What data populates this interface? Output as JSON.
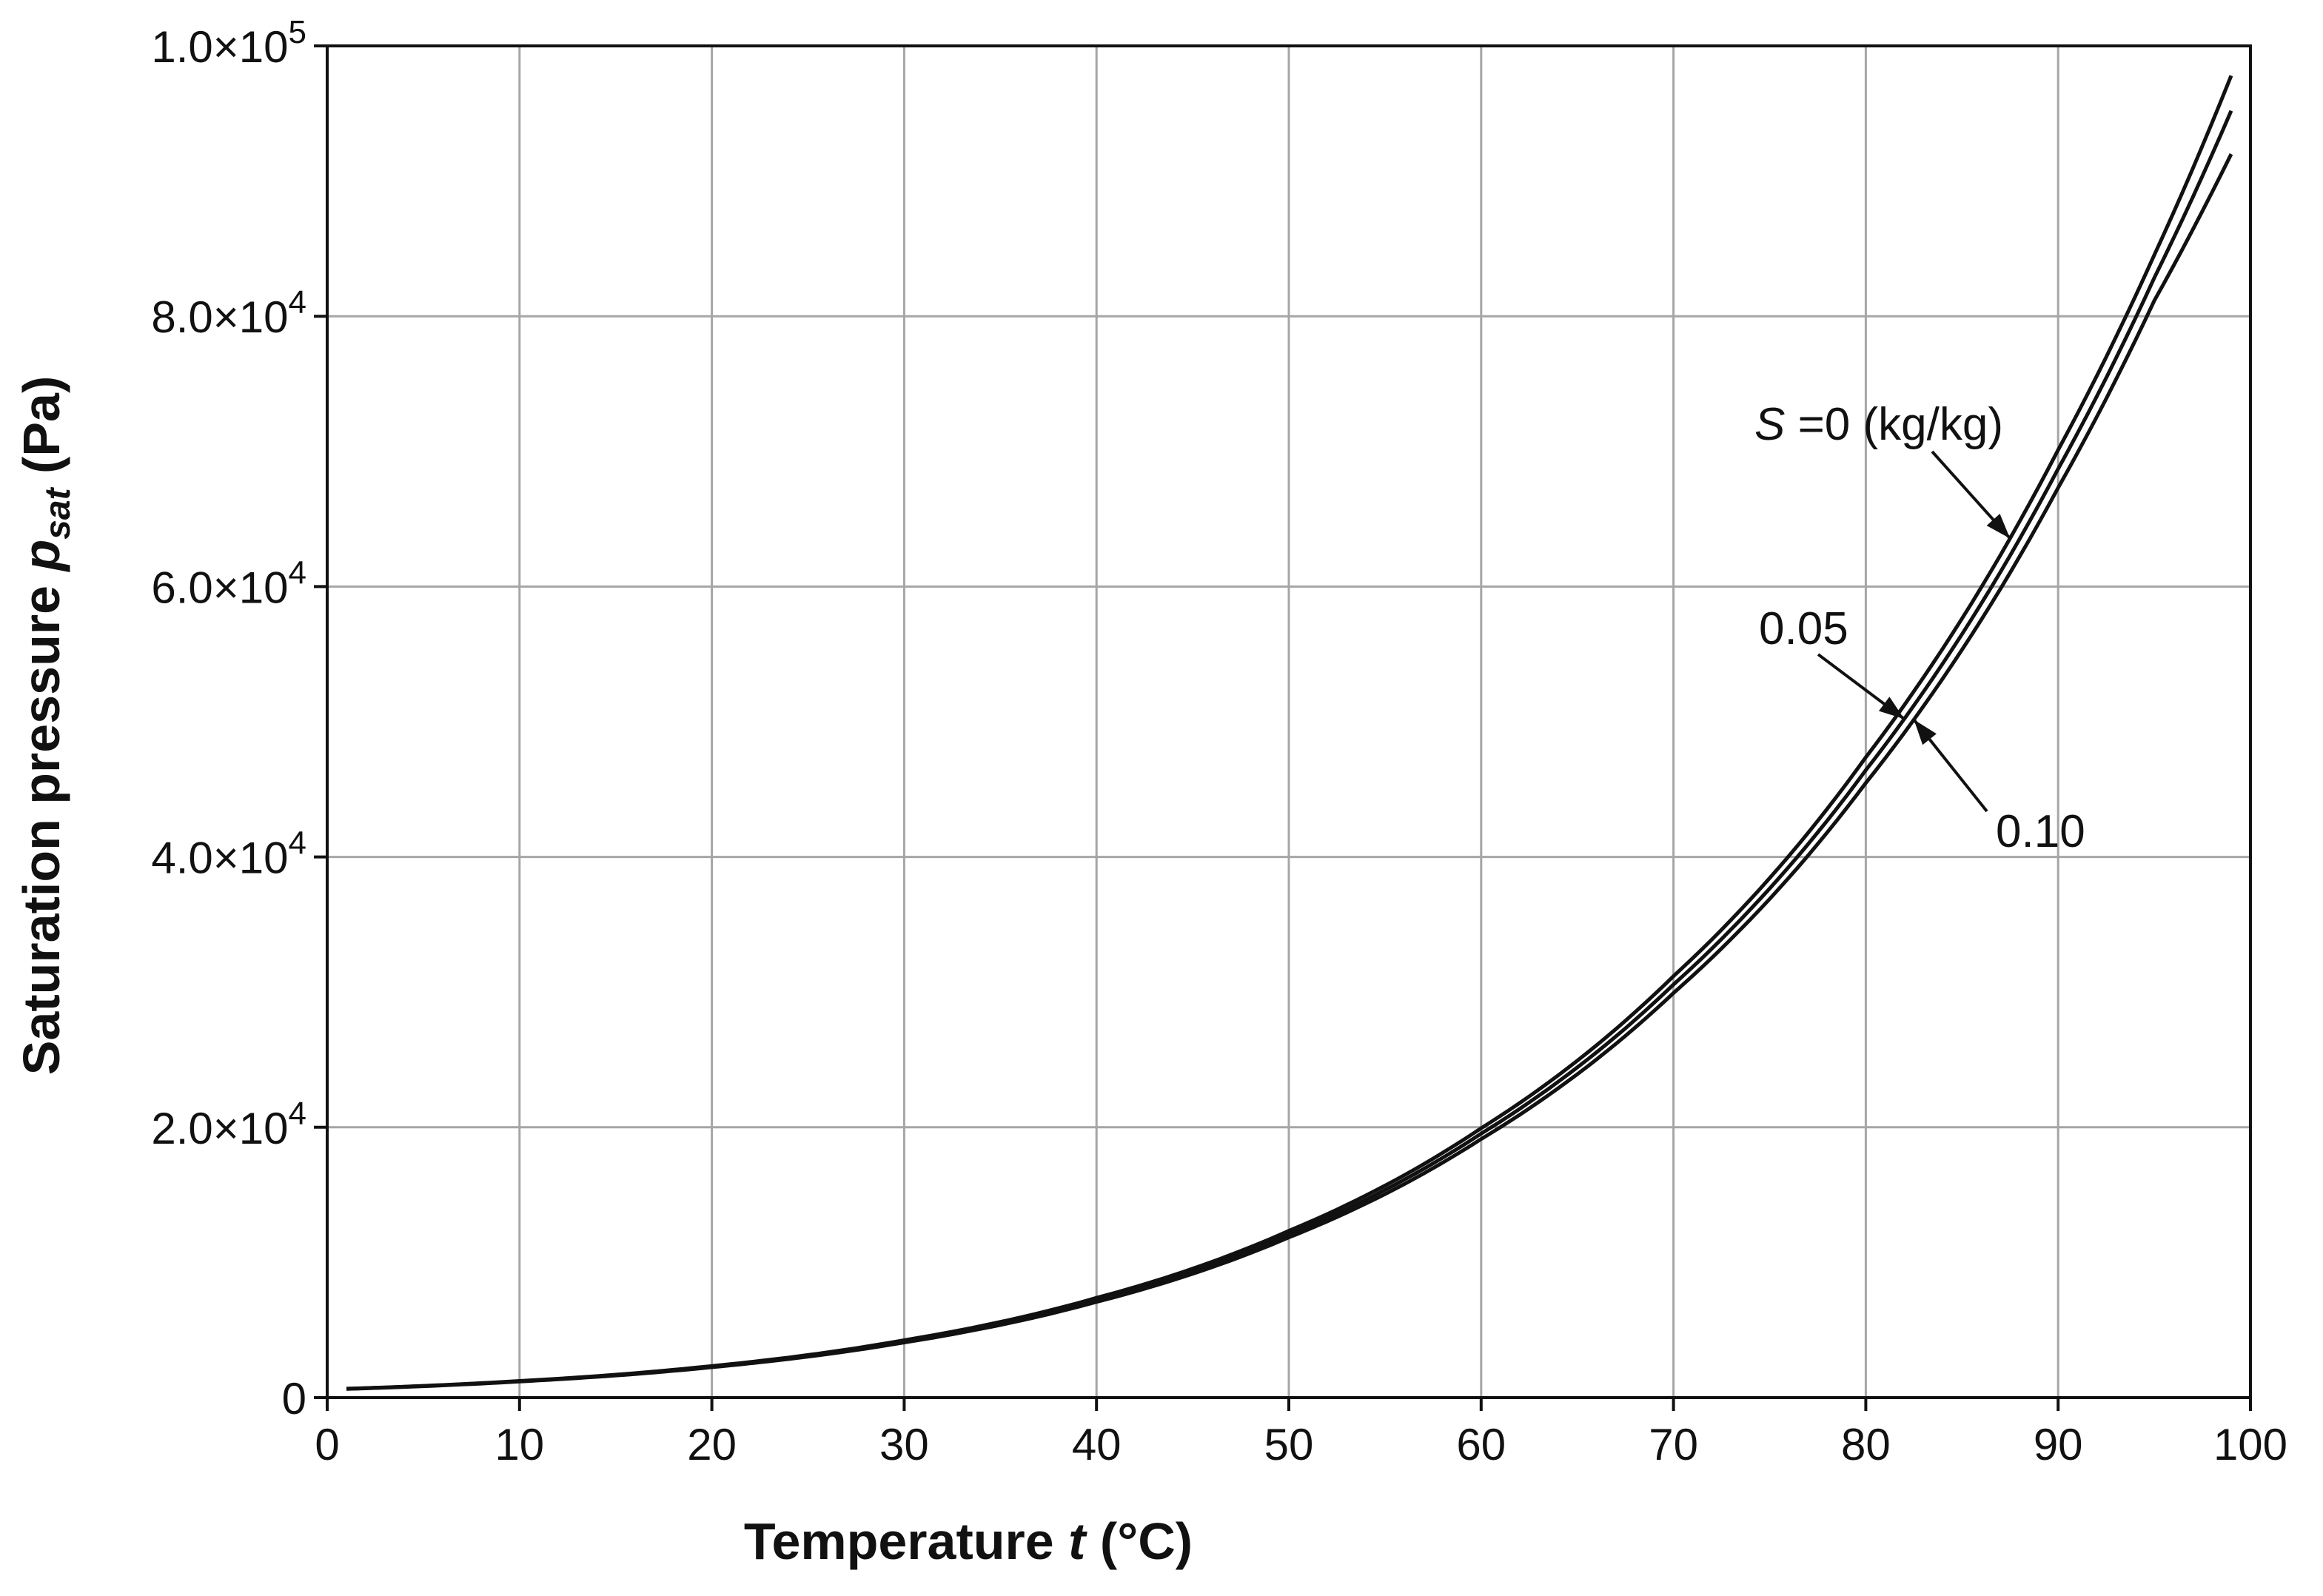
{
  "chart_data": {
    "type": "line",
    "xlabel": {
      "text": "Temperature ",
      "var": "t",
      "unit": " (°C)"
    },
    "ylabel": {
      "text": "Saturation pressure ",
      "var": "p",
      "sub": "sat",
      "unit": " (Pa)"
    },
    "xlim": [
      0,
      100
    ],
    "ylim": [
      0,
      100000
    ],
    "grid": true,
    "x_ticks": [
      0,
      10,
      20,
      30,
      40,
      50,
      60,
      70,
      80,
      90,
      100
    ],
    "y_ticks": [
      {
        "value": 0,
        "mantissa": "0",
        "exp": ""
      },
      {
        "value": 20000,
        "mantissa": "2.0×10",
        "exp": "4"
      },
      {
        "value": 40000,
        "mantissa": "4.0×10",
        "exp": "4"
      },
      {
        "value": 60000,
        "mantissa": "6.0×10",
        "exp": "4"
      },
      {
        "value": 80000,
        "mantissa": "8.0×10",
        "exp": "4"
      },
      {
        "value": 100000,
        "mantissa": "1.0×10",
        "exp": "5"
      }
    ],
    "x": [
      1,
      10,
      20,
      30,
      40,
      50,
      60,
      70,
      80,
      90,
      95,
      99
    ],
    "series": [
      {
        "name": "S = 0",
        "values": [
          660,
          1230,
          2340,
          4250,
          7380,
          12340,
          19930,
          31180,
          47370,
          70110,
          84530,
          97800
        ]
      },
      {
        "name": "S = 0.05",
        "values": [
          650,
          1210,
          2290,
          4160,
          7230,
          12090,
          19530,
          30560,
          46420,
          68710,
          82840,
          95200
        ]
      },
      {
        "name": "S = 0.10",
        "values": [
          640,
          1190,
          2250,
          4080,
          7080,
          11850,
          19130,
          29930,
          45470,
          67310,
          81150,
          92000
        ]
      }
    ],
    "annotations": [
      {
        "label_var": "S",
        "label_text": " =0  (kg/kg)",
        "series": "S = 0",
        "points_at_x": 87.5
      },
      {
        "label_text": "0.05",
        "series": "S = 0.05",
        "points_at_x": 82
      },
      {
        "label_text": "0.10",
        "series": "S = 0.10",
        "points_at_x": 82.5
      }
    ]
  }
}
